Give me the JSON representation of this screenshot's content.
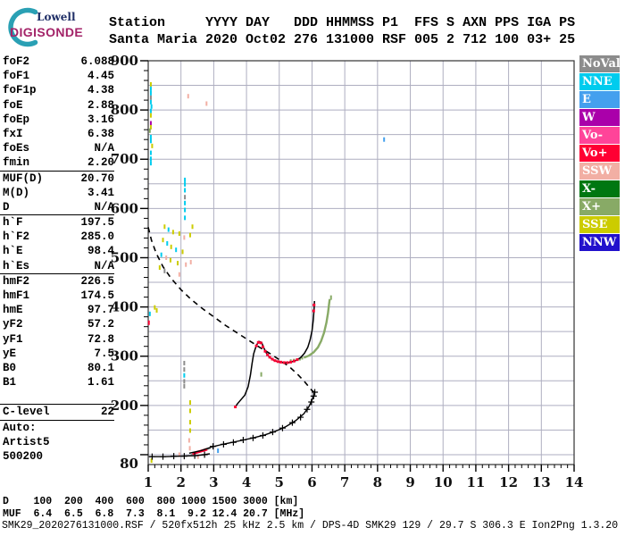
{
  "logo": {
    "line1": "Lowell",
    "line2": "DIGISONDE"
  },
  "header": {
    "line1": "Station     YYYY DAY   DDD HHMMSS P1  FFS S AXN PPS IGA PS",
    "line2": "Santa Maria 2020 Oct02 276 131000 RSF 005 2 712 100 03+ 25"
  },
  "left_panel": {
    "groups": [
      [
        [
          "foF2",
          "6.088"
        ],
        [
          "foF1",
          "4.45"
        ],
        [
          "foF1p",
          "4.38"
        ],
        [
          "foE",
          "2.88"
        ],
        [
          "foEp",
          "3.16"
        ],
        [
          "fxI",
          "6.38"
        ],
        [
          "foEs",
          "N/A"
        ],
        [
          "fmin",
          "2.20"
        ]
      ],
      [
        [
          "MUF(D)",
          "20.70"
        ],
        [
          "M(D)",
          "3.41"
        ],
        [
          "D",
          "N/A"
        ]
      ],
      [
        [
          "h`F",
          "197.5"
        ],
        [
          "h`F2",
          "285.0"
        ],
        [
          "h`E",
          "98.4"
        ],
        [
          "h`Es",
          "N/A"
        ]
      ],
      [
        [
          "hmF2",
          "226.5"
        ],
        [
          "hmF1",
          "174.5"
        ],
        [
          "hmE",
          "97.7"
        ],
        [
          "yF2",
          "57.2"
        ],
        [
          "yF1",
          "72.8"
        ],
        [
          "yE",
          "7.5"
        ],
        [
          "B0",
          "80.1"
        ],
        [
          "B1",
          "1.61"
        ]
      ],
      [
        [
          "C-level",
          "22"
        ]
      ]
    ],
    "footer_lines": [
      "Auto:",
      "Artist5",
      "500200"
    ]
  },
  "legend": [
    {
      "label": "NoVal",
      "color": "#8C8C8C"
    },
    {
      "label": "NNE",
      "color": "#00CCEE"
    },
    {
      "label": "E",
      "color": "#44A0EE"
    },
    {
      "label": "W",
      "color": "#AA00AA"
    },
    {
      "label": "Vo-",
      "color": "#FF4499"
    },
    {
      "label": "Vo+",
      "color": "#FF0033"
    },
    {
      "label": "SSW",
      "color": "#F2AFA4"
    },
    {
      "label": "X-",
      "color": "#007711"
    },
    {
      "label": "X+",
      "color": "#88AA66"
    },
    {
      "label": "SSE",
      "color": "#CCCC00"
    },
    {
      "label": "NNW",
      "color": "#2211CC"
    }
  ],
  "muf_table": {
    "row1_label": "D",
    "row2_label": "MUF",
    "d_values": [
      "100",
      "200",
      "400",
      "600",
      "800",
      "1000",
      "1500",
      "3000"
    ],
    "muf_values": [
      "6.4",
      "6.5",
      "6.8",
      "7.3",
      "8.1",
      "9.2",
      "12.4",
      "20.7"
    ],
    "d_unit": "[km]",
    "muf_unit": "[MHz]"
  },
  "footer": "SMK29_2020276131000.RSF / 520fx512h 25 kHz 2.5 km / DPS-4D SMK29 129 / 29.7 S 306.3 E Ion2Png 1.3.20",
  "chart_data": {
    "type": "scatter",
    "title": "Digisonde ionogram Santa Maria 2020 Oct02 276 131000",
    "xlabel": "",
    "ylabel": "",
    "xlim": [
      1,
      14
    ],
    "ylim": [
      80,
      900
    ],
    "x_ticks": [
      1,
      2,
      3,
      4,
      5,
      6,
      7,
      8,
      9,
      10,
      11,
      12,
      13,
      14
    ],
    "y_tick_labels": [
      900,
      800,
      700,
      600,
      500,
      400,
      300,
      200
    ],
    "y_bottom_label": "80",
    "x_minor_step": 0.2,
    "y_minor_step": 20,
    "grid": {
      "x_step": 1,
      "y_step": 50,
      "color": "#AEAEC0"
    },
    "noise_colors": {
      "y": "#CCCC00",
      "c": "#00CCEE",
      "b": "#44A0EE",
      "s": "#F2AFA4",
      "p": "#FF4499",
      "g": "#8C8C8C",
      "m": "#AA00AA",
      "x": "#88AA66",
      "r": "#FF0033"
    },
    "series": {
      "profile_dashed": {
        "color": "#000000",
        "points": [
          [
            1.0,
            562
          ],
          [
            1.1,
            535
          ],
          [
            1.25,
            508
          ],
          [
            1.45,
            482
          ],
          [
            1.7,
            458
          ],
          [
            2.0,
            435
          ],
          [
            2.3,
            416
          ],
          [
            2.65,
            397
          ],
          [
            3.0,
            380
          ],
          [
            3.35,
            363
          ],
          [
            3.7,
            348
          ],
          [
            4.05,
            333
          ],
          [
            4.4,
            318
          ],
          [
            4.7,
            306
          ],
          [
            5.0,
            293
          ],
          [
            5.3,
            279
          ],
          [
            5.55,
            264
          ],
          [
            5.75,
            250
          ],
          [
            5.9,
            238
          ],
          [
            6.0,
            230
          ],
          [
            6.088,
            226
          ]
        ]
      },
      "artist_E": {
        "color": "#000000",
        "points": [
          [
            1.02,
            96
          ],
          [
            1.5,
            96
          ],
          [
            2.0,
            97
          ],
          [
            2.45,
            98
          ],
          [
            2.7,
            100
          ],
          [
            2.88,
            102
          ]
        ],
        "crosses": [
          [
            1.12,
            96
          ],
          [
            1.45,
            96
          ],
          [
            1.78,
            97
          ],
          [
            2.1,
            97
          ],
          [
            2.42,
            98
          ],
          [
            2.72,
            100
          ]
        ]
      },
      "valley_black": {
        "color": "#000000",
        "points": [
          [
            2.25,
            103
          ],
          [
            2.6,
            108
          ],
          [
            2.95,
            116
          ]
        ]
      },
      "valley_gray": {
        "color": "#8C8C8C",
        "points": [
          [
            2.3,
            100
          ],
          [
            2.62,
            106
          ],
          [
            2.9,
            113
          ]
        ]
      },
      "valley_red": {
        "color": "#FF0033",
        "points": [
          [
            2.35,
            102
          ],
          [
            2.5,
            105
          ],
          [
            2.65,
            108
          ],
          [
            2.8,
            111
          ]
        ]
      },
      "artist_F": {
        "color": "#000000",
        "points": [
          [
            2.95,
            116
          ],
          [
            3.2,
            120
          ],
          [
            3.5,
            124
          ],
          [
            3.85,
            129
          ],
          [
            4.2,
            134
          ],
          [
            4.55,
            140
          ],
          [
            4.9,
            148
          ],
          [
            5.2,
            157
          ],
          [
            5.5,
            169
          ],
          [
            5.75,
            183
          ],
          [
            5.9,
            197
          ],
          [
            6.0,
            211
          ],
          [
            6.06,
            222
          ],
          [
            6.09,
            228
          ]
        ],
        "crosses": [
          [
            2.98,
            117
          ],
          [
            3.3,
            121
          ],
          [
            3.6,
            125
          ],
          [
            3.9,
            130
          ],
          [
            4.2,
            134
          ],
          [
            4.5,
            139
          ],
          [
            4.8,
            146
          ],
          [
            5.1,
            154
          ],
          [
            5.4,
            165
          ],
          [
            5.65,
            176
          ],
          [
            5.85,
            192
          ],
          [
            5.98,
            207
          ],
          [
            6.05,
            219
          ],
          [
            6.085,
            227
          ]
        ]
      },
      "o_trace": {
        "color": "#000000",
        "points": [
          [
            3.65,
            196
          ],
          [
            3.72,
            203
          ],
          [
            3.82,
            211
          ],
          [
            3.95,
            221
          ],
          [
            4.05,
            238
          ],
          [
            4.12,
            262
          ],
          [
            4.17,
            285
          ],
          [
            4.22,
            305
          ],
          [
            4.3,
            322
          ],
          [
            4.38,
            330
          ],
          [
            4.46,
            328
          ],
          [
            4.52,
            318
          ],
          [
            4.6,
            307
          ],
          [
            4.7,
            298
          ],
          [
            4.82,
            292
          ],
          [
            4.95,
            289
          ],
          [
            5.1,
            287
          ],
          [
            5.3,
            287
          ],
          [
            5.5,
            291
          ],
          [
            5.65,
            297
          ],
          [
            5.77,
            306
          ],
          [
            5.87,
            318
          ],
          [
            5.94,
            333
          ],
          [
            6.0,
            352
          ],
          [
            6.04,
            374
          ],
          [
            6.065,
            396
          ],
          [
            6.075,
            412
          ]
        ]
      },
      "o_red_dots": {
        "color": "#FF0033",
        "points": [
          [
            3.66,
            197
          ],
          [
            4.3,
            321
          ],
          [
            4.36,
            328
          ],
          [
            4.44,
            327
          ],
          [
            4.5,
            319
          ],
          [
            4.57,
            310
          ],
          [
            4.64,
            303
          ],
          [
            4.71,
            298
          ],
          [
            4.79,
            294
          ],
          [
            4.87,
            291
          ],
          [
            4.96,
            289
          ],
          [
            5.05,
            288
          ],
          [
            5.15,
            287
          ],
          [
            5.25,
            287
          ],
          [
            5.35,
            288
          ],
          [
            5.45,
            290
          ],
          [
            5.55,
            293
          ],
          [
            6.05,
            392
          ],
          [
            6.062,
            404
          ]
        ]
      },
      "x_trace": {
        "color": "#88AA66",
        "points": [
          [
            5.75,
            297
          ],
          [
            5.9,
            301
          ],
          [
            6.05,
            308
          ],
          [
            6.18,
            318
          ],
          [
            6.28,
            331
          ],
          [
            6.37,
            348
          ],
          [
            6.44,
            368
          ],
          [
            6.49,
            388
          ],
          [
            6.52,
            405
          ],
          [
            6.54,
            416
          ]
        ],
        "dots": [
          [
            5.35,
            291
          ],
          [
            5.45,
            292
          ],
          [
            5.55,
            293
          ],
          [
            5.63,
            294
          ],
          [
            5.7,
            296
          ]
        ]
      },
      "noise": [
        [
          1.08,
          852,
          "y"
        ],
        [
          1.08,
          843,
          "c"
        ],
        [
          1.08,
          834,
          "c"
        ],
        [
          1.08,
          825,
          "g"
        ],
        [
          1.08,
          816,
          "c"
        ],
        [
          1.1,
          807,
          "c"
        ],
        [
          1.08,
          798,
          "c"
        ],
        [
          1.08,
          789,
          "y"
        ],
        [
          1.08,
          773,
          "m"
        ],
        [
          1.08,
          765,
          "y"
        ],
        [
          1.05,
          758,
          "x"
        ],
        [
          1.08,
          745,
          "c"
        ],
        [
          1.08,
          737,
          "c"
        ],
        [
          1.12,
          727,
          "y"
        ],
        [
          1.08,
          713,
          "c"
        ],
        [
          1.08,
          701,
          "c"
        ],
        [
          1.08,
          692,
          "c"
        ],
        [
          2.22,
          828,
          "s"
        ],
        [
          2.78,
          813,
          "s"
        ],
        [
          2.12,
          658,
          "c"
        ],
        [
          2.12,
          649,
          "c"
        ],
        [
          2.12,
          637,
          "c"
        ],
        [
          2.12,
          623,
          "g"
        ],
        [
          2.12,
          611,
          "c"
        ],
        [
          2.12,
          597,
          "c"
        ],
        [
          2.12,
          581,
          "c"
        ],
        [
          1.5,
          563,
          "y"
        ],
        [
          1.62,
          557,
          "c"
        ],
        [
          1.76,
          552,
          "y"
        ],
        [
          1.95,
          549,
          "y"
        ],
        [
          2.1,
          541,
          "s"
        ],
        [
          1.45,
          536,
          "y"
        ],
        [
          1.58,
          529,
          "c"
        ],
        [
          1.7,
          522,
          "y"
        ],
        [
          1.85,
          516,
          "c"
        ],
        [
          2.05,
          512,
          "y"
        ],
        [
          1.4,
          506,
          "c"
        ],
        [
          1.55,
          500,
          "s"
        ],
        [
          1.68,
          495,
          "y"
        ],
        [
          1.9,
          489,
          "y"
        ],
        [
          2.15,
          486,
          "s"
        ],
        [
          1.35,
          480,
          "y"
        ],
        [
          1.5,
          473,
          "g"
        ],
        [
          1.95,
          466,
          "s"
        ],
        [
          2.28,
          546,
          "y"
        ],
        [
          2.3,
          491,
          "s"
        ],
        [
          2.35,
          563,
          "y"
        ],
        [
          1.2,
          399,
          "y"
        ],
        [
          1.05,
          386,
          "c"
        ],
        [
          1.02,
          368,
          "r"
        ],
        [
          1.26,
          393,
          "y"
        ],
        [
          2.1,
          286,
          "g"
        ],
        [
          2.1,
          273,
          "g"
        ],
        [
          2.1,
          261,
          "c"
        ],
        [
          2.1,
          249,
          "g"
        ],
        [
          2.1,
          239,
          "g"
        ],
        [
          2.28,
          206,
          "y"
        ],
        [
          2.28,
          189,
          "y"
        ],
        [
          2.28,
          166,
          "y"
        ],
        [
          2.28,
          149,
          "y"
        ],
        [
          2.25,
          129,
          "s"
        ],
        [
          2.27,
          113,
          "s"
        ],
        [
          8.2,
          740,
          "b"
        ],
        [
          3.13,
          108,
          "b"
        ],
        [
          1.1,
          88,
          "y"
        ],
        [
          1.95,
          100,
          "s"
        ],
        [
          4.45,
          263,
          "x"
        ],
        [
          6.58,
          419,
          "x"
        ],
        [
          2.52,
          96,
          "s"
        ]
      ]
    }
  }
}
